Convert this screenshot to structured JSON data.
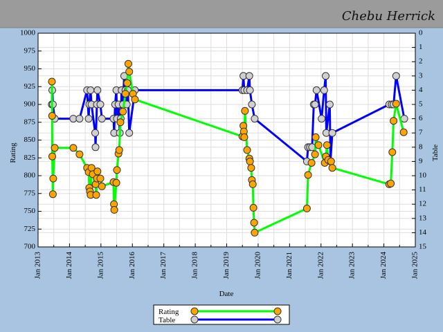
{
  "colors": {
    "page_background": "#a9c4e0",
    "header_band": "#9b9b9b",
    "header_border": "#7f7f7f",
    "plot_background": "#ffffff",
    "grid": "#dedede",
    "marker_outline": "#333333"
  },
  "chart_data": {
    "type": "line",
    "title": "Chebu Herrick",
    "xlabel": "Date",
    "ylabel": "Rating",
    "ylabel_right": "Table",
    "xlim": [
      "2013-01-01",
      "2025-01-01"
    ],
    "ylim": [
      700,
      1000
    ],
    "ylim_right": [
      0,
      15
    ],
    "right_axis_inverted": true,
    "grid": true,
    "legend_position": "bottom-center",
    "x_ticks": [
      "Jan 2013",
      "Jan 2014",
      "Jan 2015",
      "Jan 2016",
      "Jan 2017",
      "Jan 2018",
      "Jan 2019",
      "Jan 2020",
      "Jan 2021",
      "Jan 2022",
      "Jan 2023",
      "Jan 2024",
      "Jan 2025"
    ],
    "y_ticks": [
      700,
      725,
      750,
      775,
      800,
      825,
      850,
      875,
      900,
      925,
      950,
      975,
      1000
    ],
    "y_ticks_right": [
      0,
      1,
      2,
      3,
      4,
      5,
      6,
      7,
      8,
      9,
      10,
      11,
      12,
      13,
      14,
      15
    ],
    "series": [
      {
        "name": "Rating",
        "axis": "left",
        "color": "#00ff00",
        "marker_color": "#ffa500",
        "points": [
          [
            "2013-06-10",
            932
          ],
          [
            "2013-06-12",
            884
          ],
          [
            "2013-06-14",
            827
          ],
          [
            "2013-06-21",
            774
          ],
          [
            "2013-06-25",
            796
          ],
          [
            "2013-07-12",
            839
          ],
          [
            "2014-02-15",
            839
          ],
          [
            "2014-04-27",
            830
          ],
          [
            "2014-07-23",
            811
          ],
          [
            "2014-08-11",
            805
          ],
          [
            "2014-08-18",
            783
          ],
          [
            "2014-08-26",
            778
          ],
          [
            "2014-09-02",
            773
          ],
          [
            "2014-09-13",
            811
          ],
          [
            "2014-09-28",
            802
          ],
          [
            "2014-10-31",
            788
          ],
          [
            "2014-11-07",
            773
          ],
          [
            "2014-11-15",
            796
          ],
          [
            "2014-11-22",
            806
          ],
          [
            "2014-12-25",
            796
          ],
          [
            "2015-01-12",
            785
          ],
          [
            "2015-05-26",
            791
          ],
          [
            "2015-05-31",
            760
          ],
          [
            "2015-06-04",
            752
          ],
          [
            "2015-06-28",
            790
          ],
          [
            "2015-07-05",
            808
          ],
          [
            "2015-07-23",
            831
          ],
          [
            "2015-07-31",
            836
          ],
          [
            "2015-08-15",
            875
          ],
          [
            "2015-09-13",
            890
          ],
          [
            "2015-10-12",
            915
          ],
          [
            "2015-11-03",
            930
          ],
          [
            "2015-11-15",
            957
          ],
          [
            "2015-11-26",
            946
          ],
          [
            "2016-01-08",
            915
          ],
          [
            "2016-01-31",
            907
          ],
          [
            "2019-07-01",
            855
          ],
          [
            "2019-07-12",
            870
          ],
          [
            "2019-07-18",
            862
          ],
          [
            "2019-07-23",
            854
          ],
          [
            "2019-07-31",
            891
          ],
          [
            "2019-08-26",
            836
          ],
          [
            "2019-09-21",
            824
          ],
          [
            "2019-09-28",
            820
          ],
          [
            "2019-10-12",
            811
          ],
          [
            "2019-10-20",
            794
          ],
          [
            "2019-10-31",
            788
          ],
          [
            "2019-11-07",
            755
          ],
          [
            "2019-11-15",
            734
          ],
          [
            "2019-11-22",
            720
          ],
          [
            "2021-07-20",
            754
          ],
          [
            "2021-08-03",
            801
          ],
          [
            "2021-09-13",
            818
          ],
          [
            "2021-10-23",
            830
          ],
          [
            "2021-10-31",
            854
          ],
          [
            "2021-12-02",
            843
          ],
          [
            "2022-02-15",
            818
          ],
          [
            "2022-02-28",
            827
          ],
          [
            "2022-03-10",
            843
          ],
          [
            "2022-03-25",
            822
          ],
          [
            "2022-04-27",
            820
          ],
          [
            "2022-05-11",
            811
          ],
          [
            "2024-03-02",
            788
          ],
          [
            "2024-03-21",
            789
          ],
          [
            "2024-04-08",
            833
          ],
          [
            "2024-04-23",
            877
          ],
          [
            "2024-05-22",
            901
          ],
          [
            "2024-08-18",
            861
          ]
        ]
      },
      {
        "name": "Table",
        "axis": "right",
        "color": "#0000ff",
        "marker_color": "#d0d0d0",
        "points": [
          [
            "2013-06-08",
            5
          ],
          [
            "2013-06-14",
            4
          ],
          [
            "2013-06-21",
            5
          ],
          [
            "2013-07-12",
            6
          ],
          [
            "2014-02-15",
            6
          ],
          [
            "2014-04-27",
            6
          ],
          [
            "2014-07-23",
            4
          ],
          [
            "2014-08-11",
            6
          ],
          [
            "2014-08-18",
            5
          ],
          [
            "2014-09-02",
            4
          ],
          [
            "2014-09-13",
            5
          ],
          [
            "2014-10-26",
            7
          ],
          [
            "2014-10-30",
            8
          ],
          [
            "2014-11-15",
            5
          ],
          [
            "2014-11-22",
            4
          ],
          [
            "2014-12-25",
            5
          ],
          [
            "2015-01-12",
            6
          ],
          [
            "2015-05-26",
            6
          ],
          [
            "2015-06-02",
            7
          ],
          [
            "2015-06-14",
            5
          ],
          [
            "2015-06-28",
            4
          ],
          [
            "2015-07-05",
            6
          ],
          [
            "2015-07-23",
            5
          ],
          [
            "2015-08-07",
            7
          ],
          [
            "2015-08-18",
            6
          ],
          [
            "2015-08-29",
            4
          ],
          [
            "2015-09-13",
            5
          ],
          [
            "2015-09-28",
            3
          ],
          [
            "2015-10-12",
            4
          ],
          [
            "2015-10-27",
            5
          ],
          [
            "2015-11-10",
            4
          ],
          [
            "2015-11-26",
            7
          ],
          [
            "2016-01-31",
            4
          ],
          [
            "2019-07-01",
            4
          ],
          [
            "2019-07-12",
            3
          ],
          [
            "2019-07-23",
            4
          ],
          [
            "2019-08-26",
            4
          ],
          [
            "2019-09-21",
            3
          ],
          [
            "2019-09-28",
            4
          ],
          [
            "2019-10-20",
            5
          ],
          [
            "2019-11-22",
            6
          ],
          [
            "2021-07-20",
            9
          ],
          [
            "2021-08-03",
            8
          ],
          [
            "2021-08-25",
            8
          ],
          [
            "2021-09-20",
            8
          ],
          [
            "2021-10-08",
            5
          ],
          [
            "2021-10-23",
            5
          ],
          [
            "2021-11-10",
            4
          ],
          [
            "2022-01-08",
            6
          ],
          [
            "2022-02-07",
            4
          ],
          [
            "2022-02-25",
            3
          ],
          [
            "2022-03-02",
            7
          ],
          [
            "2022-04-12",
            5
          ],
          [
            "2022-04-20",
            9
          ],
          [
            "2022-05-11",
            7
          ],
          [
            "2024-03-02",
            5
          ],
          [
            "2024-04-01",
            5
          ],
          [
            "2024-04-23",
            5
          ],
          [
            "2024-05-22",
            3
          ],
          [
            "2024-08-26",
            6
          ]
        ]
      }
    ]
  }
}
